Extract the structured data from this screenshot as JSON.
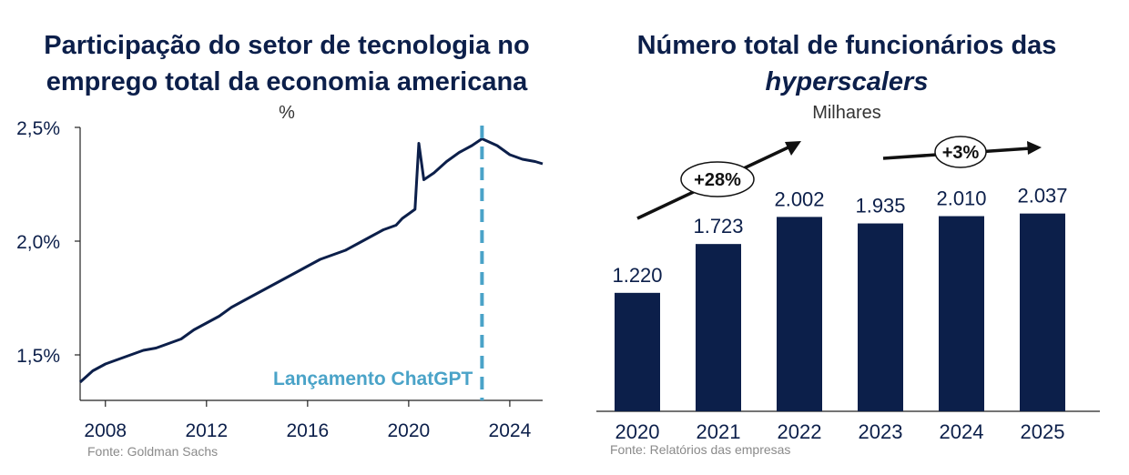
{
  "chart_data": [
    {
      "type": "line",
      "title": "Participação do setor de tecnologia no emprego total da economia americana",
      "unit": "%",
      "source": "Fonte: Goldman Sachs",
      "xlim": [
        2007,
        2025.3
      ],
      "ylim": [
        1.3,
        2.5
      ],
      "x_ticks": [
        2008,
        2012,
        2016,
        2020,
        2024
      ],
      "y_ticks": [
        {
          "value": 1.5,
          "label": "1,5%"
        },
        {
          "value": 2.0,
          "label": "2,0%"
        },
        {
          "value": 2.5,
          "label": "2,5%"
        }
      ],
      "series": [
        {
          "x": [
            2007.0,
            2007.5,
            2008.0,
            2008.5,
            2009.0,
            2009.5,
            2010.0,
            2010.5,
            2011.0,
            2011.5,
            2012.0,
            2012.5,
            2013.0,
            2013.5,
            2014.0,
            2014.5,
            2015.0,
            2015.5,
            2016.0,
            2016.5,
            2017.0,
            2017.5,
            2018.0,
            2018.5,
            2019.0,
            2019.5,
            2019.75,
            2020.0,
            2020.25,
            2020.4,
            2020.6,
            2021.0,
            2021.5,
            2022.0,
            2022.5,
            2022.9,
            2023.5,
            2024.0,
            2024.5,
            2025.0,
            2025.3
          ],
          "values": [
            1.38,
            1.43,
            1.46,
            1.48,
            1.5,
            1.52,
            1.53,
            1.55,
            1.57,
            1.61,
            1.64,
            1.67,
            1.71,
            1.74,
            1.77,
            1.8,
            1.83,
            1.86,
            1.89,
            1.92,
            1.94,
            1.96,
            1.99,
            2.02,
            2.05,
            2.07,
            2.1,
            2.12,
            2.14,
            2.43,
            2.27,
            2.3,
            2.35,
            2.39,
            2.42,
            2.45,
            2.42,
            2.38,
            2.36,
            2.35,
            2.34
          ]
        }
      ],
      "annotation": {
        "x": 2022.9,
        "label": "Lançamento ChatGPT"
      },
      "colors": {
        "line": "#0c1f4a",
        "annotation": "#4aa3c8"
      }
    },
    {
      "type": "bar",
      "title_line1": "Número total de funcionários das",
      "title_line2": "hyperscalers",
      "unit": "Milhares",
      "source": "Fonte: Relatórios das empresas",
      "categories": [
        "2020",
        "2021",
        "2022",
        "2023",
        "2024",
        "2025"
      ],
      "values": [
        1220,
        1723,
        2002,
        1935,
        2010,
        2037
      ],
      "value_labels": [
        "1.220",
        "1.723",
        "2.002",
        "1.935",
        "2.010",
        "2.037"
      ],
      "growth_labels": [
        "+28%",
        "+3%"
      ],
      "colors": {
        "bar": "#0c1f4a"
      }
    }
  ]
}
